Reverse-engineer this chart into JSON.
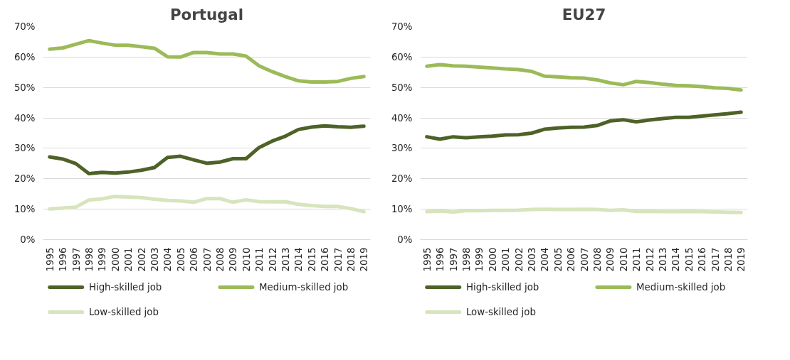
{
  "chart_data": [
    {
      "type": "line",
      "title": "Portugal",
      "categories": [
        "1995",
        "1996",
        "1997",
        "1998",
        "1999",
        "2000",
        "2001",
        "2002",
        "2003",
        "2004",
        "2005",
        "2006",
        "2007",
        "2008",
        "2009",
        "2010",
        "2011",
        "2012",
        "2013",
        "2014",
        "2015",
        "2016",
        "2017",
        "2018",
        "2019"
      ],
      "series": [
        {
          "name": "High-skilled job",
          "color": "#4e6228",
          "values": [
            27.2,
            26.5,
            25,
            21.7,
            22.1,
            21.9,
            22.2,
            22.8,
            23.7,
            27,
            27.4,
            26.2,
            25.1,
            25.5,
            26.6,
            26.6,
            30.3,
            32.4,
            34,
            36.2,
            37,
            37.4,
            37.1,
            36.9,
            37.3
          ]
        },
        {
          "name": "Medium-skilled job",
          "color": "#9bbb59",
          "values": [
            62.6,
            63,
            64.2,
            65.4,
            64.6,
            63.9,
            63.9,
            63.4,
            62.9,
            60.1,
            60,
            61.5,
            61.5,
            61,
            61,
            60.3,
            57.1,
            55.2,
            53.6,
            52.2,
            51.8,
            51.8,
            52,
            53,
            53.6
          ]
        },
        {
          "name": "Low-skilled job",
          "color": "#d7e4bd",
          "values": [
            10.1,
            10.4,
            10.7,
            13,
            13.4,
            14.2,
            14,
            13.8,
            13.3,
            12.9,
            12.7,
            12.3,
            13.5,
            13.5,
            12.3,
            13.1,
            12.5,
            12.4,
            12.5,
            11.6,
            11.2,
            10.9,
            10.9,
            10.2,
            9.2
          ]
        }
      ],
      "ylim": [
        0,
        70
      ],
      "yticks": [
        {
          "value": 0,
          "label": "0%"
        },
        {
          "value": 10,
          "label": "10%"
        },
        {
          "value": 20,
          "label": "20%"
        },
        {
          "value": 30,
          "label": "30%"
        },
        {
          "value": 40,
          "label": "40%"
        },
        {
          "value": 50,
          "label": "50%"
        },
        {
          "value": 60,
          "label": "60%"
        },
        {
          "value": 70,
          "label": "70%"
        }
      ],
      "grid": "y",
      "legend": "bottom",
      "line_style": "solid"
    },
    {
      "type": "line",
      "title": "EU27",
      "categories": [
        "1995",
        "1996",
        "1997",
        "1998",
        "1999",
        "2000",
        "2001",
        "2002",
        "2003",
        "2004",
        "2005",
        "2006",
        "2007",
        "2008",
        "2009",
        "2010",
        "2011",
        "2012",
        "2013",
        "2014",
        "2015",
        "2016",
        "2017",
        "2018",
        "2019"
      ],
      "series": [
        {
          "name": "High-skilled job",
          "color": "#4e6228",
          "values": [
            33.8,
            33,
            33.8,
            33.5,
            33.8,
            34,
            34.4,
            34.5,
            35,
            36.3,
            36.7,
            36.9,
            37,
            37.5,
            39,
            39.4,
            38.7,
            39.3,
            39.8,
            40.2,
            40.2,
            40.6,
            41,
            41.4,
            41.9
          ]
        },
        {
          "name": "Medium-skilled job",
          "color": "#9bbb59",
          "values": [
            57,
            57.5,
            57.1,
            57,
            56.7,
            56.4,
            56.1,
            55.9,
            55.3,
            53.7,
            53.5,
            53.2,
            53.1,
            52.5,
            51.5,
            50.9,
            52,
            51.6,
            51.1,
            50.7,
            50.6,
            50.3,
            49.9,
            49.7,
            49.2
          ]
        },
        {
          "name": "Low-skilled job",
          "color": "#d7e4bd",
          "values": [
            9.2,
            9.4,
            9.1,
            9.5,
            9.5,
            9.6,
            9.6,
            9.7,
            9.9,
            10,
            9.9,
            9.9,
            10,
            9.9,
            9.6,
            9.8,
            9.3,
            9.3,
            9.2,
            9.2,
            9.3,
            9.2,
            9.1,
            9,
            8.9
          ]
        }
      ],
      "ylim": [
        0,
        70
      ],
      "yticks": [
        {
          "value": 0,
          "label": "0%"
        },
        {
          "value": 10,
          "label": "10%"
        },
        {
          "value": 20,
          "label": "20%"
        },
        {
          "value": 30,
          "label": "30%"
        },
        {
          "value": 40,
          "label": "40%"
        },
        {
          "value": 50,
          "label": "50%"
        },
        {
          "value": 60,
          "label": "60%"
        },
        {
          "value": 70,
          "label": "70%"
        }
      ],
      "grid": "y",
      "legend": "bottom",
      "line_style": "solid"
    }
  ]
}
